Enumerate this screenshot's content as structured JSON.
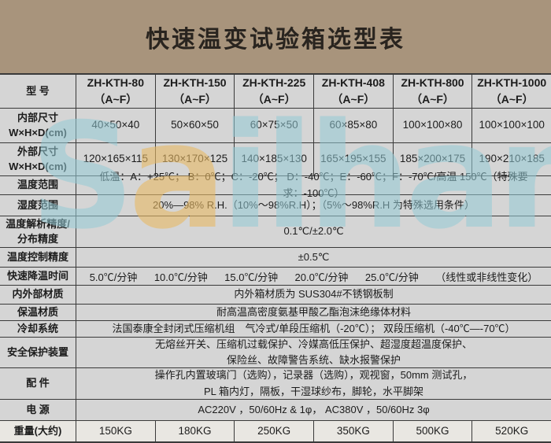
{
  "title": "快速温变试验箱选型表",
  "watermark": {
    "p1": "S",
    "p2": "a",
    "p3": "ilham"
  },
  "colors": {
    "page_background": "#a8947c",
    "cell_background": "#d5d5d5",
    "weight_row_background": "#e9e7e2",
    "border": "#3a3a3a",
    "watermark_blue": "#93cbd6",
    "watermark_orange": "#e7b964"
  },
  "table": {
    "header": {
      "label": "型 号",
      "models": [
        {
          "name": "ZH-KTH-80",
          "range": "（A~F）"
        },
        {
          "name": "ZH-KTH-150",
          "range": "（A~F）"
        },
        {
          "name": "ZH-KTH-225",
          "range": "（A~F）"
        },
        {
          "name": "ZH-KTH-408",
          "range": "（A~F）"
        },
        {
          "name": "ZH-KTH-800",
          "range": "（A~F）"
        },
        {
          "name": "ZH-KTH-1000",
          "range": "（A~F）"
        }
      ]
    },
    "inner_size": {
      "label1": "内部尺寸",
      "label2": "W×H×D(cm)",
      "values": [
        "40×50×40",
        "50×60×50",
        "60×75×50",
        "60×85×80",
        "100×100×80",
        "100×100×100"
      ]
    },
    "outer_size": {
      "label1": "外部尺寸",
      "label2": "W×H×D(cm)",
      "values": [
        "120×165×115",
        "130×170×125",
        "140×185×130",
        "165×195×155",
        "185×200×175",
        "190×210×185"
      ]
    },
    "temp_range": {
      "label": "温度范围",
      "value": "低温：A：+25℃；  B：0℃；C：-20℃；  D：-40℃；E：-60℃；F：-70℃/高温 150℃（特殊要求：-100℃）"
    },
    "humidity_range": {
      "label": "湿度范围",
      "value": "20%—98% R.H.（10%～98%R.H）；（5%～98%R.H 为特殊选用条件）"
    },
    "resolution": {
      "label1": "温度解析精度/",
      "label2": "分布精度",
      "value": "0.1℃/±2.0℃"
    },
    "control_accuracy": {
      "label": "温度控制精度",
      "value": "±0.5℃"
    },
    "cooling_time": {
      "label": "快速降温时间",
      "values": [
        "5.0℃/分钟",
        "10.0℃/分钟",
        "15.0℃/分钟",
        "20.0℃/分钟",
        "25.0℃/分钟",
        "（线性或非线性变化）"
      ]
    },
    "materials": {
      "label": "内外部材质",
      "value": "内外箱材质为 SUS304#不锈钢板制"
    },
    "insulation": {
      "label": "保温材质",
      "value": "耐高温高密度氨基甲酸乙酯泡沫绝缘体材料"
    },
    "cooling_system": {
      "label": "冷却系统",
      "value": "法国泰康全封闭式压缩机组　气冷式/单段压缩机（-20℃）；  双段压缩机（-40℃—-70℃）"
    },
    "safety": {
      "label": "安全保护装置",
      "line1": "无熔丝开关、压缩机过载保护、冷媒高低压保护、超湿度超温度保护、",
      "line2": "保险丝、故障警告系统、缺水报警保护"
    },
    "accessories": {
      "label": "配 件",
      "line1": "操作孔内置玻璃门（选购），记录器（选购），观视窗，50mm 测试孔，",
      "line2": "PL 箱内灯，隔板，干湿球纱布，脚轮，水平脚架"
    },
    "power": {
      "label": "电 源",
      "value": "AC220V ，50/60Hz & 1φ，  AC380V ，50/60Hz 3φ"
    },
    "weight": {
      "label": "重量(大约)",
      "values": [
        "150KG",
        "180KG",
        "250KG",
        "350KG",
        "500KG",
        "520KG"
      ]
    }
  }
}
